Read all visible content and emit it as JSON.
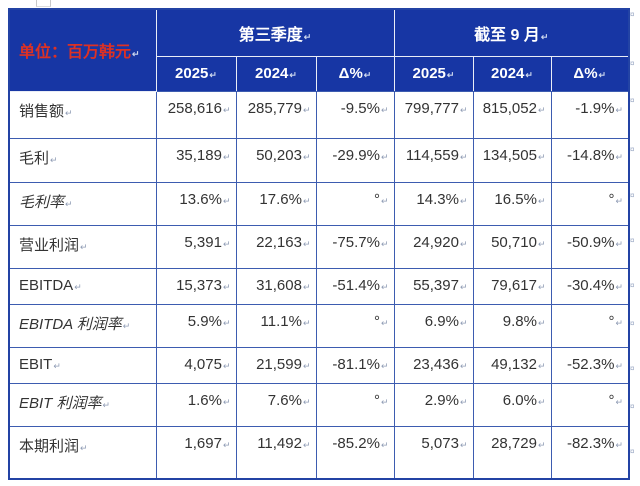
{
  "colors": {
    "header_bg": "#1736A4",
    "header_text": "#ffffff",
    "title_text": "#DD3124",
    "grid_line": "#3D5CB0",
    "outer_border": "#2343A4",
    "header_divider": "#E9EDF6",
    "body_text": "#333333"
  },
  "marks": {
    "cell_end": "↵",
    "row_end": "¤"
  },
  "table": {
    "unit_label": "单位：百万韩元",
    "column_groups": [
      {
        "label": "第三季度"
      },
      {
        "label": "截至 9 月"
      }
    ],
    "sub_headers": [
      "2025",
      "2024",
      "Δ%",
      "2025",
      "2024",
      "Δ%"
    ],
    "rows": [
      {
        "label": "销售额",
        "italic": false,
        "values": [
          "258,616",
          "285,779",
          "-9.5%",
          "799,777",
          "815,052",
          "-1.9%"
        ]
      },
      {
        "label": "毛利",
        "italic": false,
        "values": [
          "35,189",
          "50,203",
          "-29.9%",
          "114,559",
          "134,505",
          "-14.8%"
        ]
      },
      {
        "label": "毛利率",
        "italic": true,
        "values": [
          "13.6%",
          "17.6%",
          "°",
          "14.3%",
          "16.5%",
          "°"
        ]
      },
      {
        "label": "营业利润",
        "italic": false,
        "values": [
          "5,391",
          "22,163",
          "-75.7%",
          "24,920",
          "50,710",
          "-50.9%"
        ]
      },
      {
        "label": "EBITDA",
        "italic": false,
        "values": [
          "15,373",
          "31,608",
          "-51.4%",
          "55,397",
          "79,617",
          "-30.4%"
        ]
      },
      {
        "label": "EBITDA 利润率",
        "italic": true,
        "values": [
          "5.9%",
          "11.1%",
          "°",
          "6.9%",
          "9.8%",
          "°"
        ]
      },
      {
        "label": "EBIT",
        "italic": false,
        "values": [
          "4,075",
          "21,599",
          "-81.1%",
          "23,436",
          "49,132",
          "-52.3%"
        ]
      },
      {
        "label": "EBIT 利润率",
        "italic": true,
        "values": [
          "1.6%",
          "7.6%",
          "°",
          "2.9%",
          "6.0%",
          "°"
        ]
      },
      {
        "label": "本期利润",
        "italic": false,
        "values": [
          "1,697",
          "11,492",
          "-85.2%",
          "5,073",
          "28,729",
          "-82.3%"
        ]
      }
    ]
  }
}
